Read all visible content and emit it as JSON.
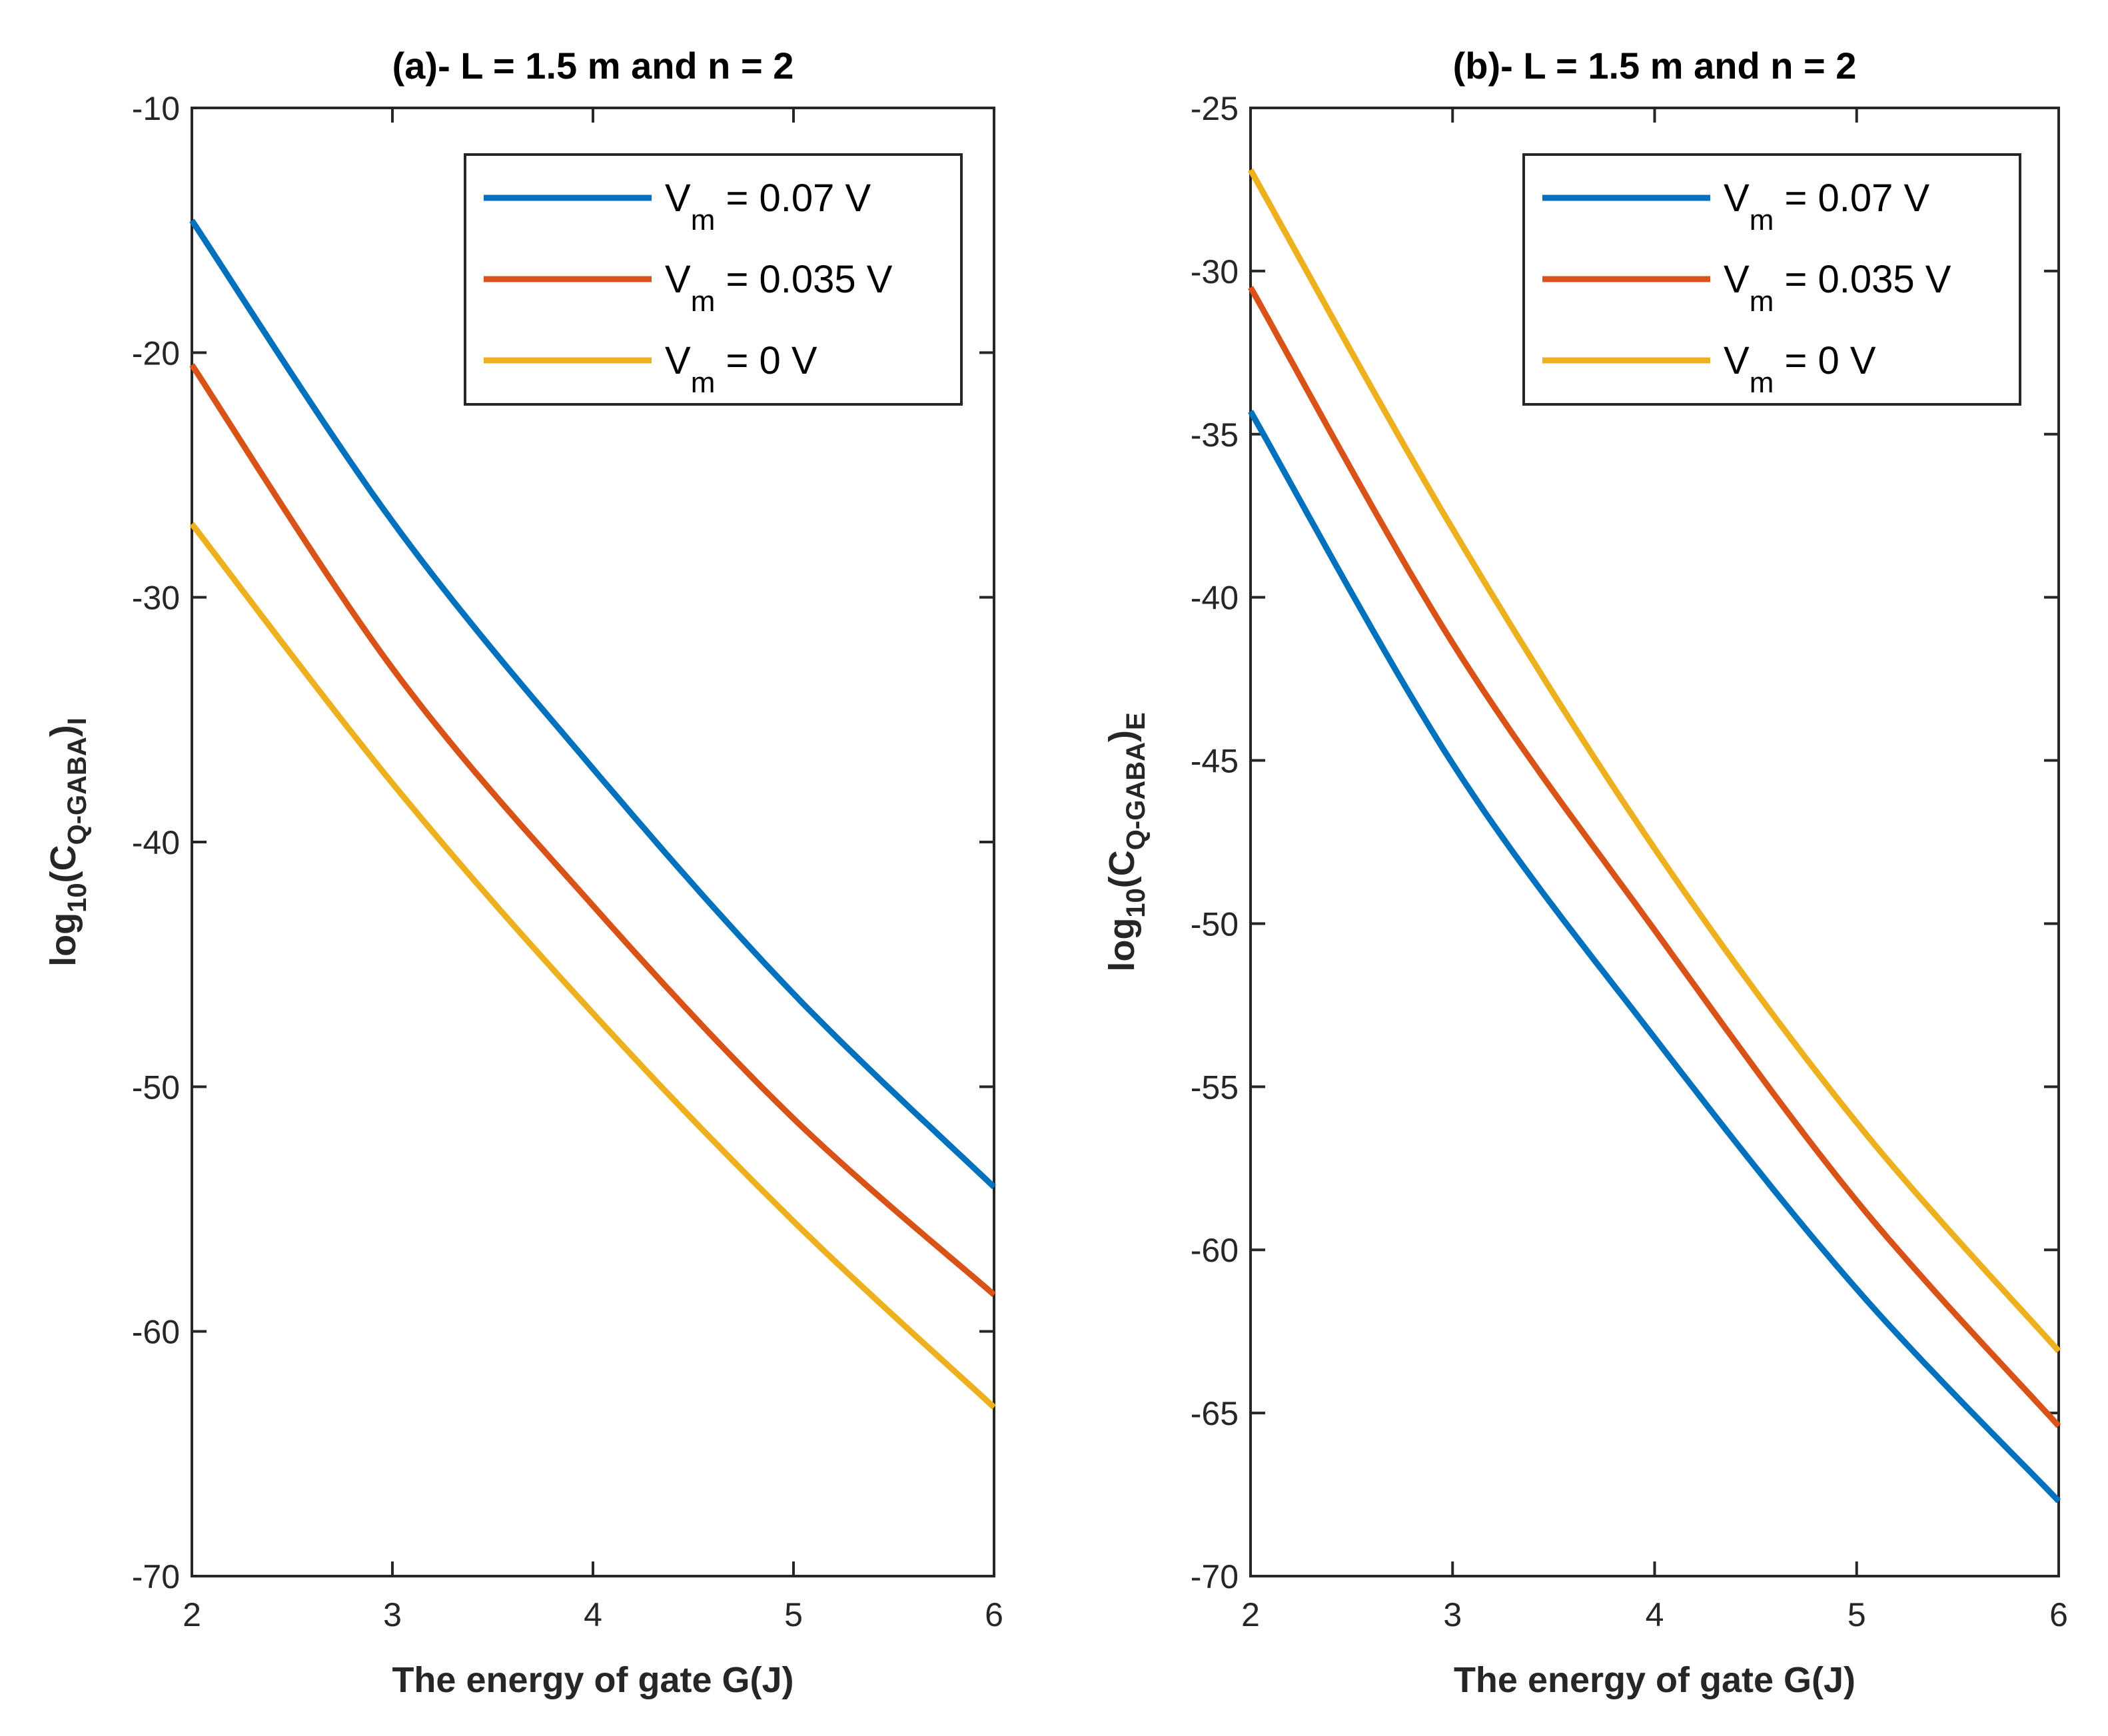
{
  "chart_data": [
    {
      "type": "line",
      "title": "(a)- L = 1.5 m and n = 2",
      "xlabel": "The energy of gate G(J)",
      "ylabel_parts": {
        "a": "log",
        "b": "10",
        "c": "(C",
        "d": "Q-GABA",
        "e": ")",
        "f": "I"
      },
      "xlim": [
        2,
        6
      ],
      "ylim": [
        -70,
        -10
      ],
      "xticks": [
        2,
        3,
        4,
        5,
        6
      ],
      "yticks": [
        -10,
        -20,
        -30,
        -40,
        -50,
        -60,
        -70
      ],
      "grid": false,
      "legend_position": "top-right",
      "x": [
        2,
        3,
        4,
        5,
        6
      ],
      "series": [
        {
          "name": "Vm = 0.07 V",
          "label_main": "V",
          "label_sub": "m",
          "label_rest": " = 0.07 V",
          "color": "#0072BD",
          "values": [
            -14.6,
            -26.9,
            -37.0,
            -46.2,
            -54.1
          ]
        },
        {
          "name": "Vm = 0.035 V",
          "label_main": "V",
          "label_sub": "m",
          "label_rest": " = 0.035 V",
          "color": "#D95319",
          "values": [
            -20.5,
            -32.9,
            -42.6,
            -51.3,
            -58.5
          ]
        },
        {
          "name": "Vm = 0 V",
          "label_main": "V",
          "label_sub": "m",
          "label_rest": " = 0 V",
          "color": "#EDB120",
          "values": [
            -27.0,
            -37.6,
            -47.0,
            -55.5,
            -63.1
          ]
        }
      ]
    },
    {
      "type": "line",
      "title": "(b)- L = 1.5 m and n = 2",
      "xlabel": "The energy of gate G(J)",
      "ylabel_parts": {
        "a": "log",
        "b": "10",
        "c": "(C",
        "d": "Q-GABA",
        "e": ")",
        "f": "E"
      },
      "xlim": [
        2,
        6
      ],
      "ylim": [
        -70,
        -25
      ],
      "xticks": [
        2,
        3,
        4,
        5,
        6
      ],
      "yticks": [
        -25,
        -30,
        -35,
        -40,
        -45,
        -50,
        -55,
        -60,
        -65,
        -70
      ],
      "grid": false,
      "legend_position": "top-right",
      "x": [
        2,
        3,
        4,
        5,
        6
      ],
      "series": [
        {
          "name": "Vm = 0.07 V",
          "label_main": "V",
          "label_sub": "m",
          "label_rest": " = 0.07 V",
          "color": "#0072BD",
          "values": [
            -34.3,
            -45.1,
            -53.5,
            -61.2,
            -67.7
          ]
        },
        {
          "name": "Vm = 0.035 V",
          "label_main": "V",
          "label_sub": "m",
          "label_rest": " = 0.035 V",
          "color": "#D95319",
          "values": [
            -30.5,
            -41.4,
            -50.2,
            -58.5,
            -65.4
          ]
        },
        {
          "name": "Vm = 0 V",
          "label_main": "V",
          "label_sub": "m",
          "label_rest": " = 0 V",
          "color": "#EDB120",
          "values": [
            -26.9,
            -37.9,
            -47.7,
            -56.1,
            -63.1
          ]
        }
      ]
    }
  ]
}
